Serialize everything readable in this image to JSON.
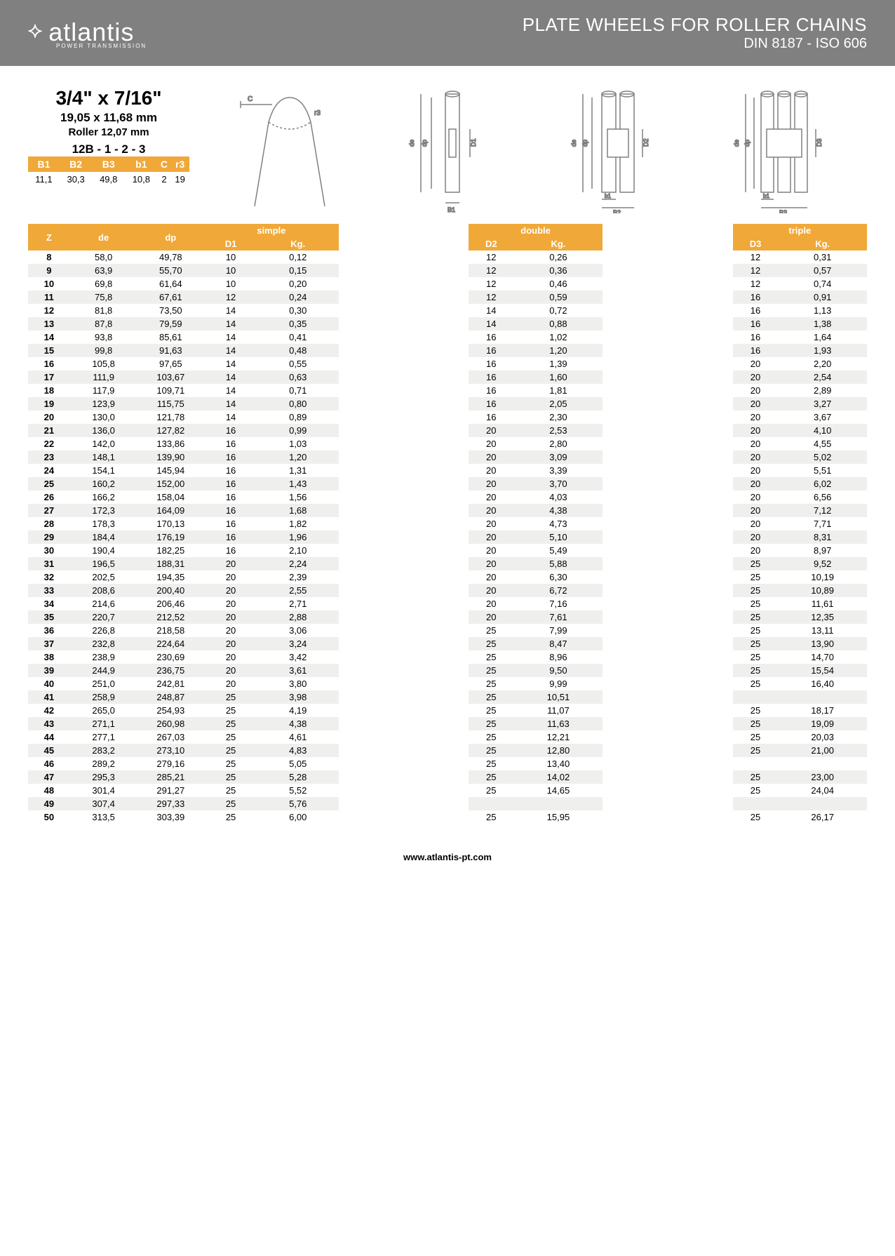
{
  "header": {
    "brand": "atlantis",
    "brand_sub": "POWER TRANSMISSION",
    "title": "PLATE WHEELS FOR ROLLER CHAINS",
    "subtitle": "DIN 8187 - ISO 606"
  },
  "specs": {
    "size": "3/4\" x 7/16\"",
    "mm": "19,05 x 11,68 mm",
    "roller": "Roller 12,07 mm",
    "code": "12B - 1 - 2 - 3"
  },
  "bcols": [
    "B1",
    "B2",
    "B3",
    "b1",
    "C",
    "r3"
  ],
  "bvals": [
    "11,1",
    "30,3",
    "49,8",
    "10,8",
    "2",
    "19"
  ],
  "groups": [
    "simple",
    "double",
    "triple"
  ],
  "subcols": {
    "z": "Z",
    "de": "de",
    "dp": "dp",
    "d1": "D1",
    "kg1": "Kg.",
    "d2": "D2",
    "kg2": "Kg.",
    "d3": "D3",
    "kg3": "Kg."
  },
  "rows": [
    {
      "z": "8",
      "de": "58,0",
      "dp": "49,78",
      "d1": "10",
      "kg1": "0,12",
      "d2": "12",
      "kg2": "0,26",
      "d3": "12",
      "kg3": "0,31"
    },
    {
      "z": "9",
      "de": "63,9",
      "dp": "55,70",
      "d1": "10",
      "kg1": "0,15",
      "d2": "12",
      "kg2": "0,36",
      "d3": "12",
      "kg3": "0,57"
    },
    {
      "z": "10",
      "de": "69,8",
      "dp": "61,64",
      "d1": "10",
      "kg1": "0,20",
      "d2": "12",
      "kg2": "0,46",
      "d3": "12",
      "kg3": "0,74"
    },
    {
      "z": "11",
      "de": "75,8",
      "dp": "67,61",
      "d1": "12",
      "kg1": "0,24",
      "d2": "12",
      "kg2": "0,59",
      "d3": "16",
      "kg3": "0,91"
    },
    {
      "z": "12",
      "de": "81,8",
      "dp": "73,50",
      "d1": "14",
      "kg1": "0,30",
      "d2": "14",
      "kg2": "0,72",
      "d3": "16",
      "kg3": "1,13"
    },
    {
      "z": "13",
      "de": "87,8",
      "dp": "79,59",
      "d1": "14",
      "kg1": "0,35",
      "d2": "14",
      "kg2": "0,88",
      "d3": "16",
      "kg3": "1,38"
    },
    {
      "z": "14",
      "de": "93,8",
      "dp": "85,61",
      "d1": "14",
      "kg1": "0,41",
      "d2": "16",
      "kg2": "1,02",
      "d3": "16",
      "kg3": "1,64"
    },
    {
      "z": "15",
      "de": "99,8",
      "dp": "91,63",
      "d1": "14",
      "kg1": "0,48",
      "d2": "16",
      "kg2": "1,20",
      "d3": "16",
      "kg3": "1,93"
    },
    {
      "z": "16",
      "de": "105,8",
      "dp": "97,65",
      "d1": "14",
      "kg1": "0,55",
      "d2": "16",
      "kg2": "1,39",
      "d3": "20",
      "kg3": "2,20"
    },
    {
      "z": "17",
      "de": "111,9",
      "dp": "103,67",
      "d1": "14",
      "kg1": "0,63",
      "d2": "16",
      "kg2": "1,60",
      "d3": "20",
      "kg3": "2,54"
    },
    {
      "z": "18",
      "de": "117,9",
      "dp": "109,71",
      "d1": "14",
      "kg1": "0,71",
      "d2": "16",
      "kg2": "1,81",
      "d3": "20",
      "kg3": "2,89"
    },
    {
      "z": "19",
      "de": "123,9",
      "dp": "115,75",
      "d1": "14",
      "kg1": "0,80",
      "d2": "16",
      "kg2": "2,05",
      "d3": "20",
      "kg3": "3,27"
    },
    {
      "z": "20",
      "de": "130,0",
      "dp": "121,78",
      "d1": "14",
      "kg1": "0,89",
      "d2": "16",
      "kg2": "2,30",
      "d3": "20",
      "kg3": "3,67"
    },
    {
      "z": "21",
      "de": "136,0",
      "dp": "127,82",
      "d1": "16",
      "kg1": "0,99",
      "d2": "20",
      "kg2": "2,53",
      "d3": "20",
      "kg3": "4,10"
    },
    {
      "z": "22",
      "de": "142,0",
      "dp": "133,86",
      "d1": "16",
      "kg1": "1,03",
      "d2": "20",
      "kg2": "2,80",
      "d3": "20",
      "kg3": "4,55"
    },
    {
      "z": "23",
      "de": "148,1",
      "dp": "139,90",
      "d1": "16",
      "kg1": "1,20",
      "d2": "20",
      "kg2": "3,09",
      "d3": "20",
      "kg3": "5,02"
    },
    {
      "z": "24",
      "de": "154,1",
      "dp": "145,94",
      "d1": "16",
      "kg1": "1,31",
      "d2": "20",
      "kg2": "3,39",
      "d3": "20",
      "kg3": "5,51"
    },
    {
      "z": "25",
      "de": "160,2",
      "dp": "152,00",
      "d1": "16",
      "kg1": "1,43",
      "d2": "20",
      "kg2": "3,70",
      "d3": "20",
      "kg3": "6,02"
    },
    {
      "z": "26",
      "de": "166,2",
      "dp": "158,04",
      "d1": "16",
      "kg1": "1,56",
      "d2": "20",
      "kg2": "4,03",
      "d3": "20",
      "kg3": "6,56"
    },
    {
      "z": "27",
      "de": "172,3",
      "dp": "164,09",
      "d1": "16",
      "kg1": "1,68",
      "d2": "20",
      "kg2": "4,38",
      "d3": "20",
      "kg3": "7,12"
    },
    {
      "z": "28",
      "de": "178,3",
      "dp": "170,13",
      "d1": "16",
      "kg1": "1,82",
      "d2": "20",
      "kg2": "4,73",
      "d3": "20",
      "kg3": "7,71"
    },
    {
      "z": "29",
      "de": "184,4",
      "dp": "176,19",
      "d1": "16",
      "kg1": "1,96",
      "d2": "20",
      "kg2": "5,10",
      "d3": "20",
      "kg3": "8,31"
    },
    {
      "z": "30",
      "de": "190,4",
      "dp": "182,25",
      "d1": "16",
      "kg1": "2,10",
      "d2": "20",
      "kg2": "5,49",
      "d3": "20",
      "kg3": "8,97"
    },
    {
      "z": "31",
      "de": "196,5",
      "dp": "188,31",
      "d1": "20",
      "kg1": "2,24",
      "d2": "20",
      "kg2": "5,88",
      "d3": "25",
      "kg3": "9,52"
    },
    {
      "z": "32",
      "de": "202,5",
      "dp": "194,35",
      "d1": "20",
      "kg1": "2,39",
      "d2": "20",
      "kg2": "6,30",
      "d3": "25",
      "kg3": "10,19"
    },
    {
      "z": "33",
      "de": "208,6",
      "dp": "200,40",
      "d1": "20",
      "kg1": "2,55",
      "d2": "20",
      "kg2": "6,72",
      "d3": "25",
      "kg3": "10,89"
    },
    {
      "z": "34",
      "de": "214,6",
      "dp": "206,46",
      "d1": "20",
      "kg1": "2,71",
      "d2": "20",
      "kg2": "7,16",
      "d3": "25",
      "kg3": "11,61"
    },
    {
      "z": "35",
      "de": "220,7",
      "dp": "212,52",
      "d1": "20",
      "kg1": "2,88",
      "d2": "20",
      "kg2": "7,61",
      "d3": "25",
      "kg3": "12,35"
    },
    {
      "z": "36",
      "de": "226,8",
      "dp": "218,58",
      "d1": "20",
      "kg1": "3,06",
      "d2": "25",
      "kg2": "7,99",
      "d3": "25",
      "kg3": "13,11"
    },
    {
      "z": "37",
      "de": "232,8",
      "dp": "224,64",
      "d1": "20",
      "kg1": "3,24",
      "d2": "25",
      "kg2": "8,47",
      "d3": "25",
      "kg3": "13,90"
    },
    {
      "z": "38",
      "de": "238,9",
      "dp": "230,69",
      "d1": "20",
      "kg1": "3,42",
      "d2": "25",
      "kg2": "8,96",
      "d3": "25",
      "kg3": "14,70"
    },
    {
      "z": "39",
      "de": "244,9",
      "dp": "236,75",
      "d1": "20",
      "kg1": "3,61",
      "d2": "25",
      "kg2": "9,50",
      "d3": "25",
      "kg3": "15,54"
    },
    {
      "z": "40",
      "de": "251,0",
      "dp": "242,81",
      "d1": "20",
      "kg1": "3,80",
      "d2": "25",
      "kg2": "9,99",
      "d3": "25",
      "kg3": "16,40"
    },
    {
      "z": "41",
      "de": "258,9",
      "dp": "248,87",
      "d1": "25",
      "kg1": "3,98",
      "d2": "25",
      "kg2": "10,51",
      "d3": "",
      "kg3": ""
    },
    {
      "z": "42",
      "de": "265,0",
      "dp": "254,93",
      "d1": "25",
      "kg1": "4,19",
      "d2": "25",
      "kg2": "11,07",
      "d3": "25",
      "kg3": "18,17"
    },
    {
      "z": "43",
      "de": "271,1",
      "dp": "260,98",
      "d1": "25",
      "kg1": "4,38",
      "d2": "25",
      "kg2": "11,63",
      "d3": "25",
      "kg3": "19,09"
    },
    {
      "z": "44",
      "de": "277,1",
      "dp": "267,03",
      "d1": "25",
      "kg1": "4,61",
      "d2": "25",
      "kg2": "12,21",
      "d3": "25",
      "kg3": "20,03"
    },
    {
      "z": "45",
      "de": "283,2",
      "dp": "273,10",
      "d1": "25",
      "kg1": "4,83",
      "d2": "25",
      "kg2": "12,80",
      "d3": "25",
      "kg3": "21,00"
    },
    {
      "z": "46",
      "de": "289,2",
      "dp": "279,16",
      "d1": "25",
      "kg1": "5,05",
      "d2": "25",
      "kg2": "13,40",
      "d3": "",
      "kg3": ""
    },
    {
      "z": "47",
      "de": "295,3",
      "dp": "285,21",
      "d1": "25",
      "kg1": "5,28",
      "d2": "25",
      "kg2": "14,02",
      "d3": "25",
      "kg3": "23,00"
    },
    {
      "z": "48",
      "de": "301,4",
      "dp": "291,27",
      "d1": "25",
      "kg1": "5,52",
      "d2": "25",
      "kg2": "14,65",
      "d3": "25",
      "kg3": "24,04"
    },
    {
      "z": "49",
      "de": "307,4",
      "dp": "297,33",
      "d1": "25",
      "kg1": "5,76",
      "d2": "",
      "kg2": "",
      "d3": "",
      "kg3": ""
    },
    {
      "z": "50",
      "de": "313,5",
      "dp": "303,39",
      "d1": "25",
      "kg1": "6,00",
      "d2": "25",
      "kg2": "15,95",
      "d3": "25",
      "kg3": "26,17"
    }
  ],
  "footer": "www.atlantis-pt.com",
  "colors": {
    "orange": "#f0a838",
    "grey": "#808080",
    "zebra": "#efefed"
  }
}
